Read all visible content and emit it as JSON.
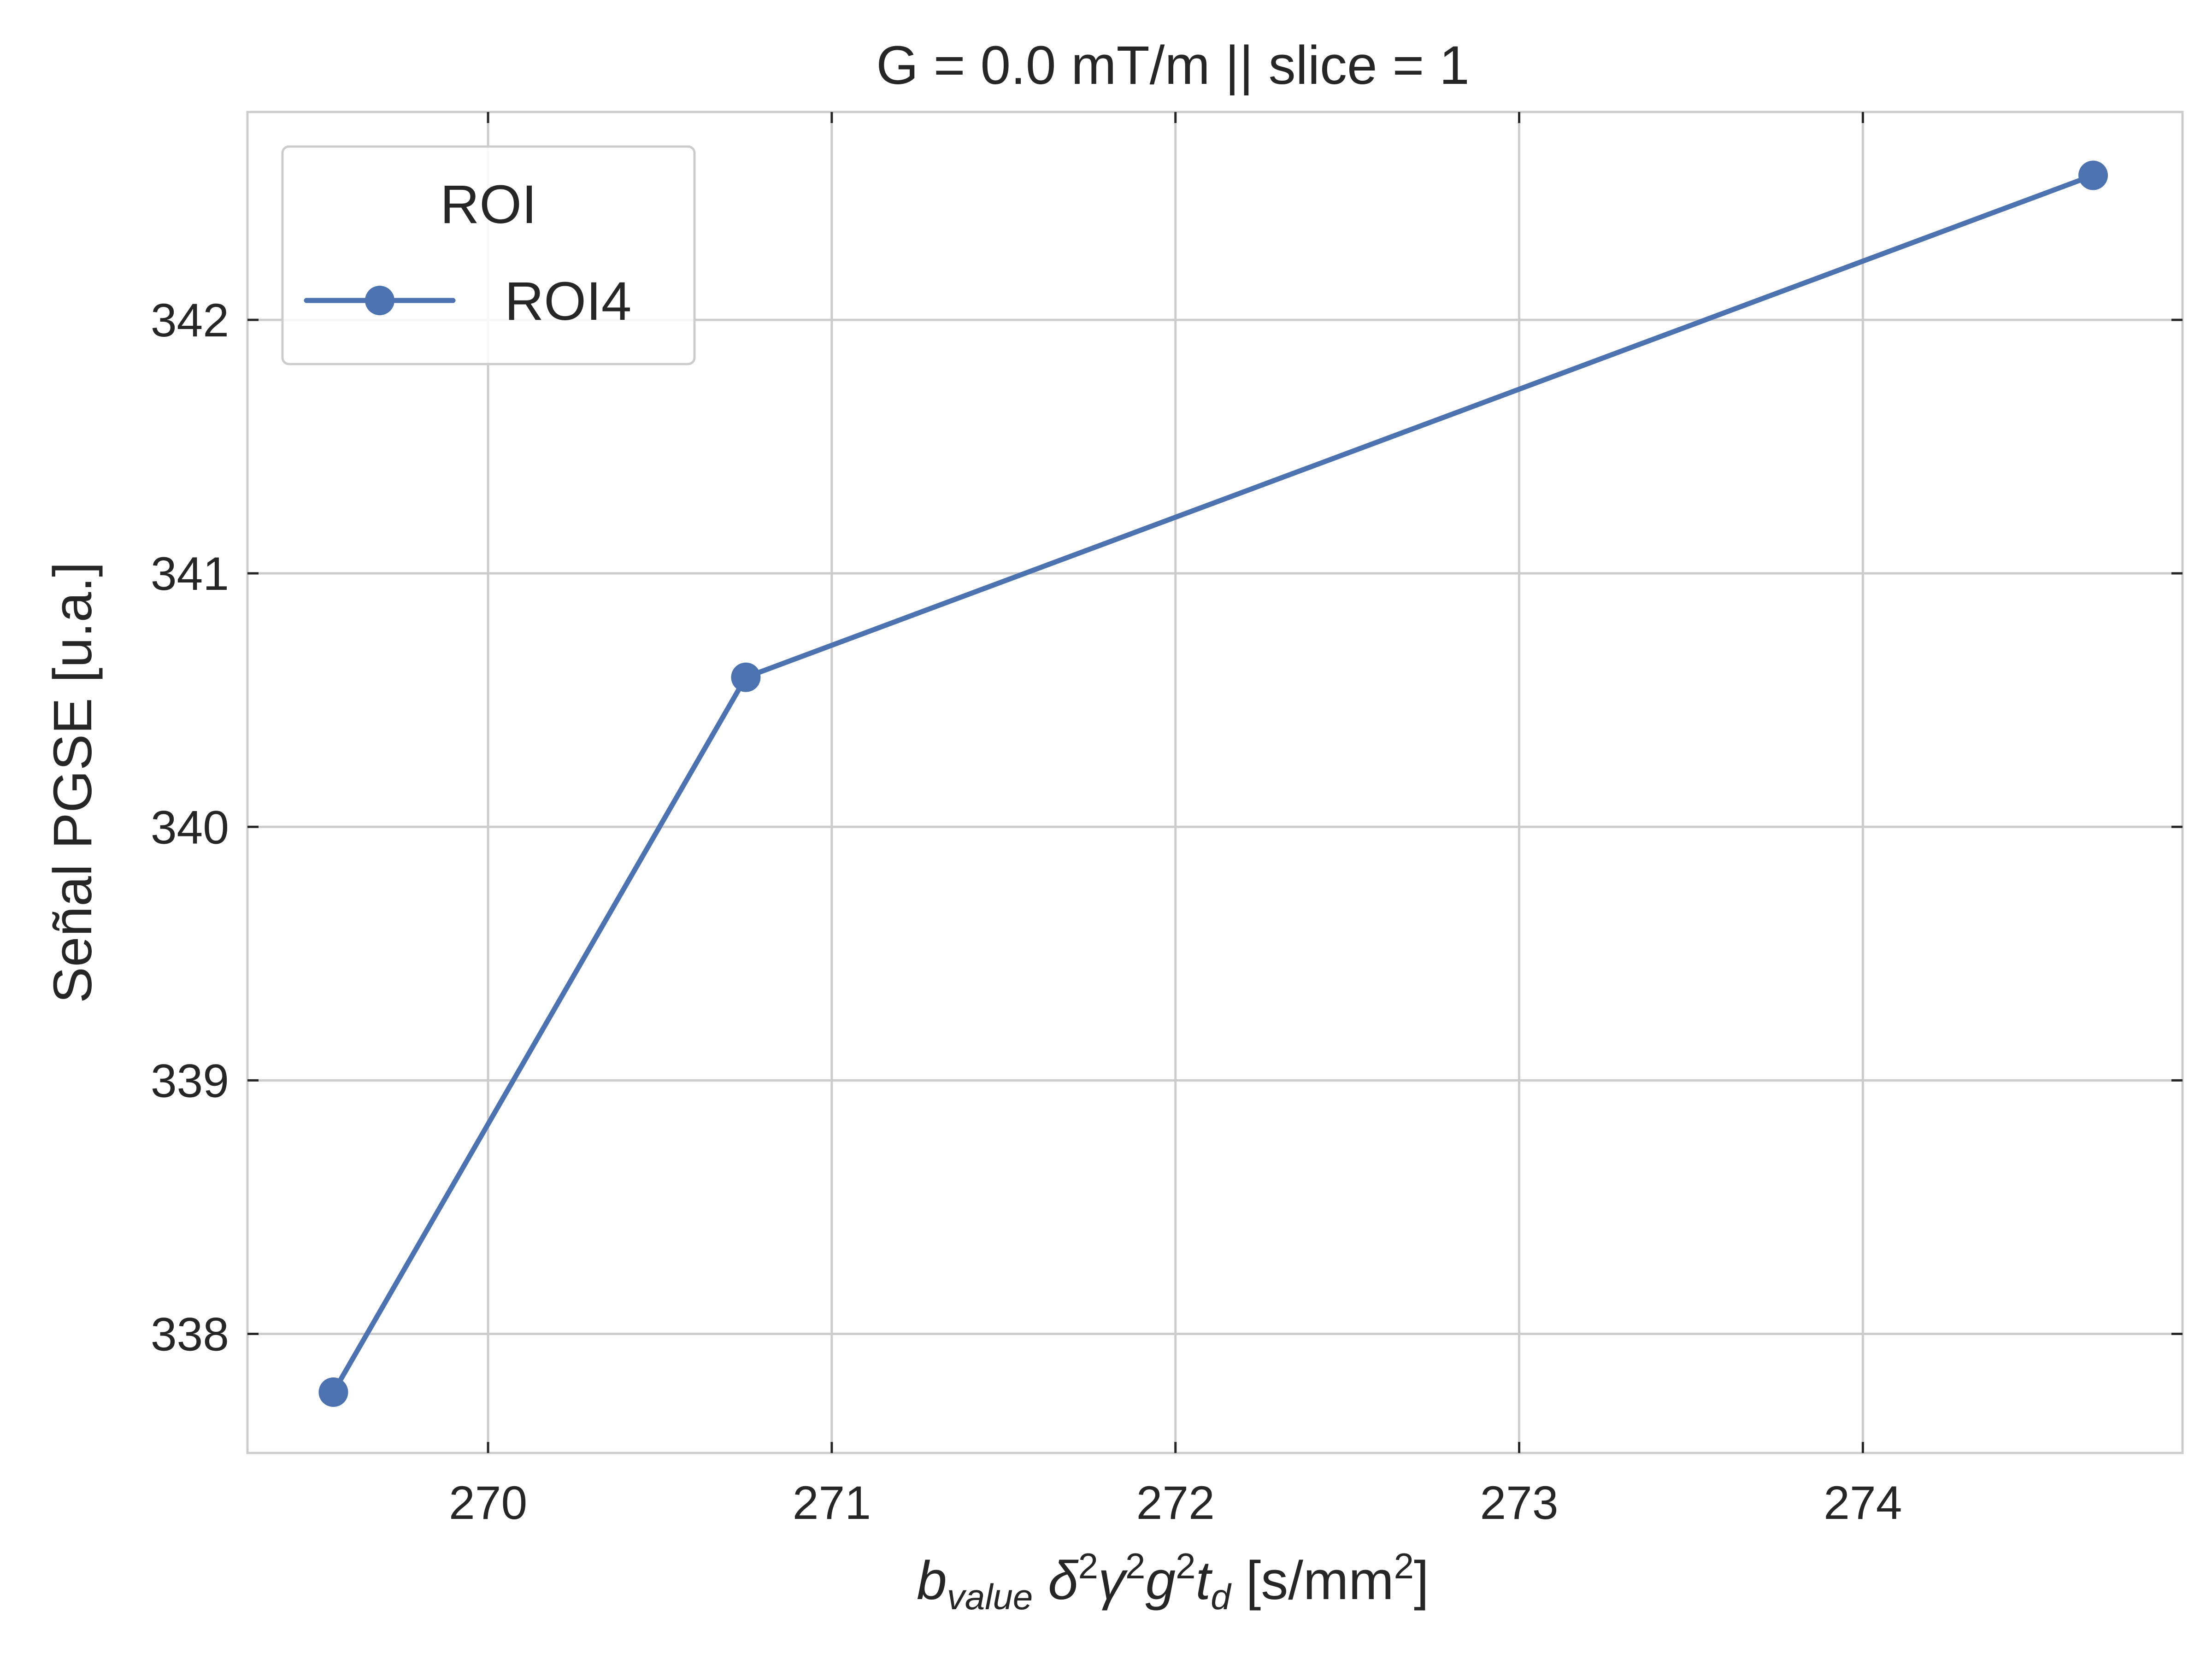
{
  "chart_data": {
    "type": "line",
    "title": "G = 0.0 mT/m  || slice = 1",
    "xlabel": {
      "b": "b",
      "sub": "value",
      "delta": "δ",
      "gamma": "γ",
      "g": "g",
      "t": "t",
      "tsub": "d",
      "sup": "2",
      "units_open": "[s/mm",
      "units_close": "]"
    },
    "ylabel": "Señal PGSE [u.a.]",
    "xlim": [
      269.3,
      274.93
    ],
    "ylim": [
      337.53,
      342.82
    ],
    "xticks": [
      270,
      271,
      272,
      273,
      274
    ],
    "yticks": [
      338,
      339,
      340,
      341,
      342
    ],
    "grid": true,
    "legend": {
      "title": "ROI",
      "placement": "top-left"
    },
    "series": [
      {
        "name": "ROI4",
        "color": "#4c72b0",
        "x": [
          269.55,
          270.75,
          274.67
        ],
        "y": [
          337.77,
          340.59,
          342.57
        ]
      }
    ]
  }
}
